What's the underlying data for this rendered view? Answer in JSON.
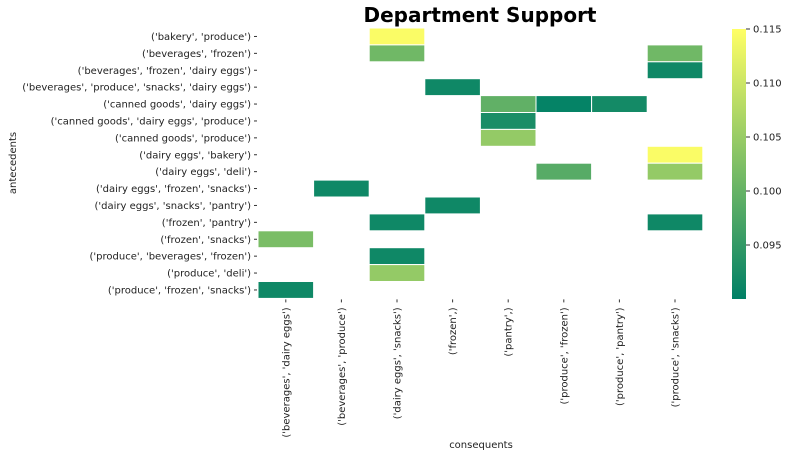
{
  "chart_data": {
    "type": "heatmap",
    "title": "Department Support",
    "xlabel": "consequents",
    "ylabel": "antecedents",
    "colormap": "summer",
    "colorbar": {
      "min": 0.09,
      "max": 0.115,
      "ticks": [
        0.095,
        0.1,
        0.105,
        0.11,
        0.115
      ],
      "tick_labels": [
        "0.095",
        "0.100",
        "0.105",
        "0.110",
        "0.115"
      ]
    },
    "x_categories": [
      "('beverages', 'dairy eggs')",
      "('beverages', 'produce')",
      "('dairy eggs', 'snacks')",
      "('frozen',)",
      "('pantry',)",
      "('produce', 'frozen')",
      "('produce', 'pantry')",
      "('produce', 'snacks')"
    ],
    "y_categories": [
      "('bakery', 'produce')",
      "('beverages', 'frozen')",
      "('beverages', 'frozen', 'dairy eggs')",
      "('beverages', 'produce', 'snacks', 'dairy eggs')",
      "('canned goods', 'dairy eggs')",
      "('canned goods', 'dairy eggs', 'produce')",
      "('canned goods', 'produce')",
      "('dairy eggs', 'bakery')",
      "('dairy eggs', 'deli')",
      "('dairy eggs', 'frozen', 'snacks')",
      "('dairy eggs', 'snacks', 'pantry')",
      "('frozen', 'pantry')",
      "('frozen', 'snacks')",
      "('produce', 'beverages', 'frozen')",
      "('produce', 'deli')",
      "('produce', 'frozen', 'snacks')"
    ],
    "cells": [
      {
        "y": 0,
        "x": 2,
        "value": 0.1145
      },
      {
        "y": 1,
        "x": 2,
        "value": 0.101
      },
      {
        "y": 1,
        "x": 7,
        "value": 0.101
      },
      {
        "y": 2,
        "x": 7,
        "value": 0.0915
      },
      {
        "y": 3,
        "x": 3,
        "value": 0.0915
      },
      {
        "y": 4,
        "x": 4,
        "value": 0.0995
      },
      {
        "y": 4,
        "x": 5,
        "value": 0.0905
      },
      {
        "y": 4,
        "x": 6,
        "value": 0.092
      },
      {
        "y": 5,
        "x": 4,
        "value": 0.0925
      },
      {
        "y": 6,
        "x": 4,
        "value": 0.1045
      },
      {
        "y": 7,
        "x": 7,
        "value": 0.1145
      },
      {
        "y": 8,
        "x": 5,
        "value": 0.0985
      },
      {
        "y": 8,
        "x": 7,
        "value": 0.1045
      },
      {
        "y": 9,
        "x": 1,
        "value": 0.0915
      },
      {
        "y": 10,
        "x": 3,
        "value": 0.0915
      },
      {
        "y": 11,
        "x": 2,
        "value": 0.0915
      },
      {
        "y": 11,
        "x": 7,
        "value": 0.0915
      },
      {
        "y": 12,
        "x": 0,
        "value": 0.102
      },
      {
        "y": 13,
        "x": 2,
        "value": 0.0915
      },
      {
        "y": 14,
        "x": 2,
        "value": 0.1045
      },
      {
        "y": 15,
        "x": 0,
        "value": 0.0915
      }
    ]
  }
}
